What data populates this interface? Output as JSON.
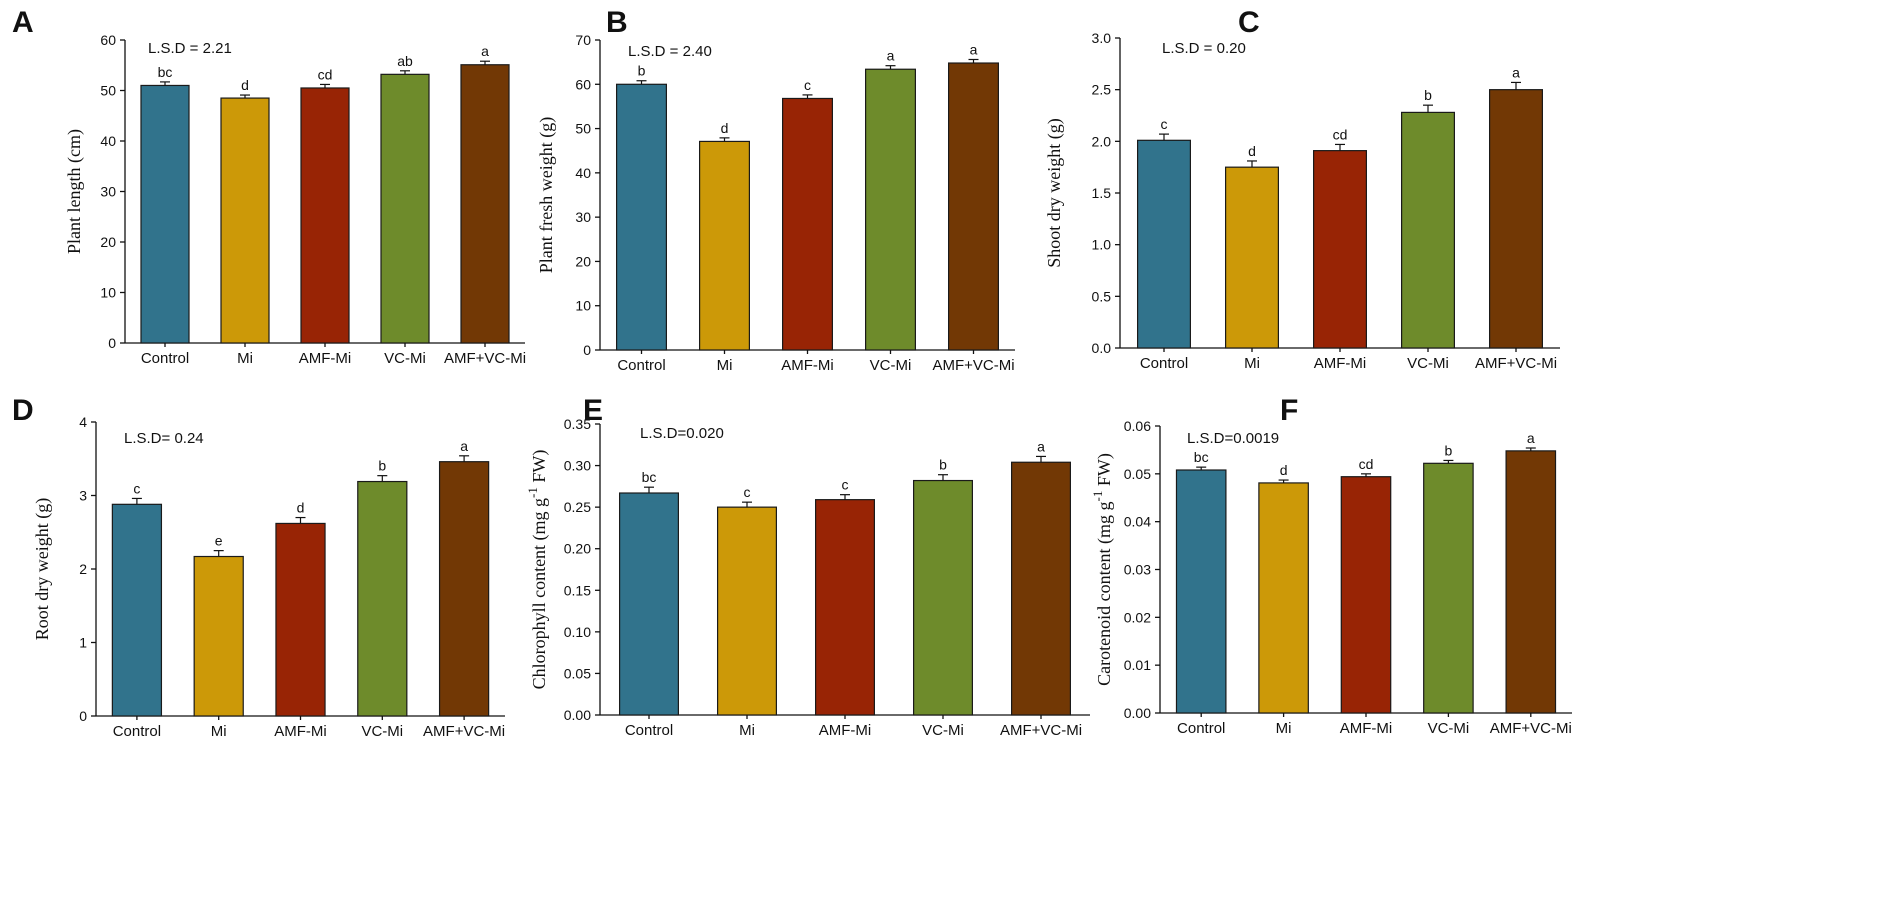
{
  "chart_data": [
    {
      "type": "bar",
      "panel": "A",
      "categories": [
        "Control",
        "Mi",
        "AMF-Mi",
        "VC-Mi",
        "AMF+VC-Mi"
      ],
      "values": [
        51.0,
        48.5,
        50.5,
        53.2,
        55.1
      ],
      "errors": [
        0.7,
        0.6,
        0.7,
        0.7,
        0.7
      ],
      "letters": [
        "bc",
        "d",
        "cd",
        "ab",
        "a"
      ],
      "colors": [
        "#31738C",
        "#CC9908",
        "#982405",
        "#6E8B2B",
        "#723805"
      ],
      "annotation": "L.S.D = 2.21",
      "ylabel": "Plant length (cm)",
      "ylim": [
        0,
        60
      ],
      "yticks": [
        "0",
        "10",
        "20",
        "30",
        "40",
        "50",
        "60"
      ]
    },
    {
      "type": "bar",
      "panel": "B",
      "categories": [
        "Control",
        "Mi",
        "AMF-Mi",
        "VC-Mi",
        "AMF+VC-Mi"
      ],
      "values": [
        60.0,
        47.1,
        56.8,
        63.4,
        64.8
      ],
      "errors": [
        0.8,
        0.8,
        0.8,
        0.8,
        0.8
      ],
      "letters": [
        "b",
        "d",
        "c",
        "a",
        "a"
      ],
      "colors": [
        "#31738C",
        "#CC9908",
        "#982405",
        "#6E8B2B",
        "#723805"
      ],
      "annotation": "L.S.D = 2.40",
      "ylabel": "Plant fresh weight (g)",
      "ylim": [
        0,
        70
      ],
      "yticks": [
        "0",
        "10",
        "20",
        "30",
        "40",
        "50",
        "60",
        "70"
      ]
    },
    {
      "type": "bar",
      "panel": "C",
      "categories": [
        "Control",
        "Mi",
        "AMF-Mi",
        "VC-Mi",
        "AMF+VC-Mi"
      ],
      "values": [
        2.01,
        1.75,
        1.91,
        2.28,
        2.5
      ],
      "errors": [
        0.06,
        0.06,
        0.06,
        0.07,
        0.07
      ],
      "letters": [
        "c",
        "d",
        "cd",
        "b",
        "a"
      ],
      "colors": [
        "#31738C",
        "#CC9908",
        "#982405",
        "#6E8B2B",
        "#723805"
      ],
      "annotation": "L.S.D = 0.20",
      "ylabel": "Shoot dry weight (g)",
      "ylim": [
        0,
        3
      ],
      "yticks": [
        "0.0",
        "0.5",
        "1.0",
        "1.5",
        "2.0",
        "2.5",
        "3.0"
      ]
    },
    {
      "type": "bar",
      "panel": "D",
      "categories": [
        "Control",
        "Mi",
        "AMF-Mi",
        "VC-Mi",
        "AMF+VC-Mi"
      ],
      "values": [
        2.88,
        2.17,
        2.62,
        3.19,
        3.46
      ],
      "errors": [
        0.08,
        0.08,
        0.08,
        0.08,
        0.08
      ],
      "letters": [
        "c",
        "e",
        "d",
        "b",
        "a"
      ],
      "colors": [
        "#31738C",
        "#CC9908",
        "#982405",
        "#6E8B2B",
        "#723805"
      ],
      "annotation": "L.S.D= 0.24",
      "ylabel": "Root dry weight (g)",
      "ylim": [
        0,
        4
      ],
      "yticks": [
        "0",
        "1",
        "2",
        "3",
        "4"
      ]
    },
    {
      "type": "bar",
      "panel": "E",
      "categories": [
        "Control",
        "Mi",
        "AMF-Mi",
        "VC-Mi",
        "AMF+VC-Mi"
      ],
      "values": [
        0.267,
        0.25,
        0.259,
        0.282,
        0.304
      ],
      "errors": [
        0.007,
        0.006,
        0.006,
        0.007,
        0.007
      ],
      "letters": [
        "bc",
        "c",
        "c",
        "b",
        "a"
      ],
      "colors": [
        "#31738C",
        "#CC9908",
        "#982405",
        "#6E8B2B",
        "#723805"
      ],
      "annotation": "L.S.D=0.020",
      "ylabel": "Chlorophyll content (mg g",
      "ylabel_sup": "-1",
      "ylabel_tail": " FW)",
      "ylim": [
        0,
        0.35
      ],
      "yticks": [
        "0.00",
        "0.05",
        "0.10",
        "0.15",
        "0.20",
        "0.25",
        "0.30",
        "0.35"
      ]
    },
    {
      "type": "bar",
      "panel": "F",
      "categories": [
        "Control",
        "Mi",
        "AMF-Mi",
        "VC-Mi",
        "AMF+VC-Mi"
      ],
      "values": [
        0.0508,
        0.0481,
        0.0494,
        0.0522,
        0.0548
      ],
      "errors": [
        0.0006,
        0.0006,
        0.0006,
        0.0006,
        0.0006
      ],
      "letters": [
        "bc",
        "d",
        "cd",
        "b",
        "a"
      ],
      "colors": [
        "#31738C",
        "#CC9908",
        "#982405",
        "#6E8B2B",
        "#723805"
      ],
      "annotation": "L.S.D=0.0019",
      "ylabel": "Carotenoid content (mg g",
      "ylabel_sup": "-1",
      "ylabel_tail": " FW)",
      "ylim": [
        0,
        0.06
      ],
      "yticks": [
        "0.00",
        "0.01",
        "0.02",
        "0.03",
        "0.04",
        "0.05",
        "0.06"
      ]
    }
  ]
}
